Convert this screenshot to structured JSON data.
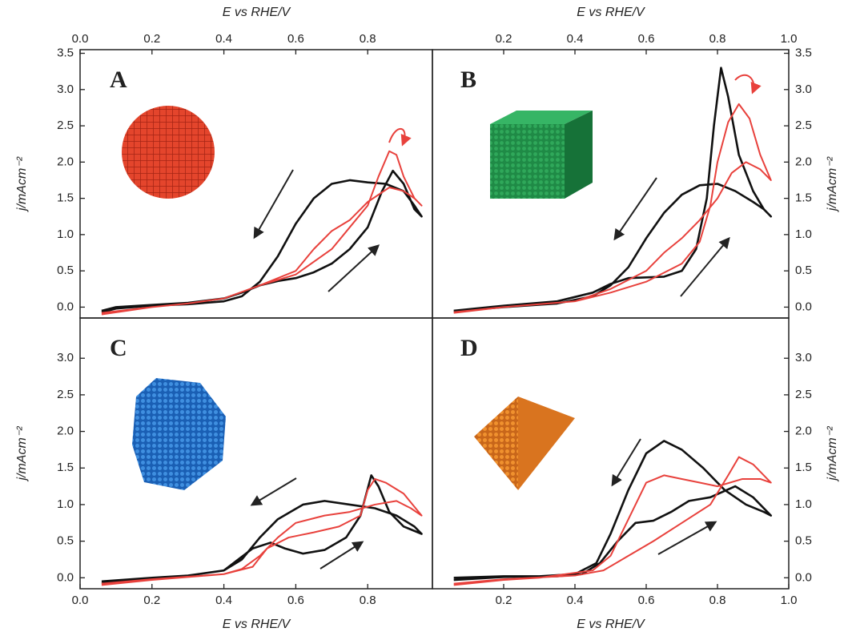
{
  "chart_data": [
    {
      "type": "line",
      "title": "A",
      "xlabel": "E vs RHE/V",
      "ylabel": "j/mAcm⁻²",
      "xlim": [
        0,
        0.98
      ],
      "xticks": [
        {
          "value": 0,
          "label": "0.0"
        },
        0.2,
        0.4,
        0.6,
        0.8
      ],
      "ylim": [
        -0.15,
        3.55
      ],
      "yticks": [
        {
          "value": 0,
          "label": "0.0"
        },
        0.5,
        {
          "value": 1,
          "label": "1.0"
        },
        1.5,
        {
          "value": 2,
          "label": "2.0"
        },
        2.5,
        {
          "value": 3,
          "label": "3.0"
        },
        3.5
      ],
      "series": [
        {
          "color": "#111111",
          "x": [
            0.06,
            0.1,
            0.2,
            0.3,
            0.4,
            0.45,
            0.5,
            0.55,
            0.6,
            0.65,
            0.7,
            0.75,
            0.8,
            0.84,
            0.87,
            0.9,
            0.93,
            0.95,
            0.93,
            0.9,
            0.85,
            0.8,
            0.75,
            0.7,
            0.65,
            0.6,
            0.55,
            0.5,
            0.45,
            0.4,
            0.3,
            0.2,
            0.1,
            0.06
          ],
          "values": [
            -0.05,
            0.0,
            0.03,
            0.06,
            0.12,
            0.2,
            0.3,
            0.36,
            0.4,
            0.48,
            0.6,
            0.8,
            1.1,
            1.6,
            1.88,
            1.7,
            1.35,
            1.25,
            1.4,
            1.6,
            1.7,
            1.72,
            1.75,
            1.7,
            1.5,
            1.15,
            0.7,
            0.35,
            0.15,
            0.08,
            0.04,
            0.02,
            -0.02,
            -0.07
          ]
        },
        {
          "color": "#e8413c",
          "x": [
            0.06,
            0.2,
            0.3,
            0.4,
            0.5,
            0.6,
            0.7,
            0.75,
            0.8,
            0.83,
            0.86,
            0.88,
            0.9,
            0.93,
            0.95,
            0.93,
            0.9,
            0.86,
            0.8,
            0.75,
            0.7,
            0.65,
            0.6,
            0.5,
            0.4,
            0.3,
            0.2,
            0.06
          ],
          "values": [
            -0.08,
            0.0,
            0.05,
            0.12,
            0.3,
            0.45,
            0.8,
            1.1,
            1.4,
            1.8,
            2.15,
            2.1,
            1.8,
            1.5,
            1.4,
            1.5,
            1.6,
            1.65,
            1.45,
            1.2,
            1.05,
            0.8,
            0.5,
            0.3,
            0.12,
            0.05,
            0.0,
            -0.1
          ]
        }
      ]
    },
    {
      "type": "line",
      "title": "B",
      "xlabel": "E vs RHE/V",
      "ylabel": "j/mAcm⁻²",
      "xlim": [
        0,
        1.0
      ],
      "xticks": [
        0.2,
        0.4,
        0.6,
        0.8,
        {
          "value": 1,
          "label": "1.0"
        }
      ],
      "ylim": [
        -0.15,
        3.55
      ],
      "yticks": [
        {
          "value": 0,
          "label": "0.0"
        },
        0.5,
        {
          "value": 1,
          "label": "1.0"
        },
        1.5,
        {
          "value": 2,
          "label": "2.0"
        },
        2.5,
        {
          "value": 3,
          "label": "3.0"
        },
        3.5
      ],
      "series": [
        {
          "color": "#111111",
          "x": [
            0.06,
            0.2,
            0.35,
            0.45,
            0.5,
            0.55,
            0.65,
            0.7,
            0.74,
            0.77,
            0.79,
            0.81,
            0.83,
            0.86,
            0.9,
            0.93,
            0.95,
            0.93,
            0.9,
            0.85,
            0.8,
            0.75,
            0.7,
            0.65,
            0.6,
            0.55,
            0.5,
            0.45,
            0.35,
            0.2,
            0.06
          ],
          "values": [
            -0.05,
            0.02,
            0.08,
            0.2,
            0.32,
            0.4,
            0.42,
            0.5,
            0.8,
            1.5,
            2.5,
            3.3,
            2.9,
            2.1,
            1.6,
            1.35,
            1.25,
            1.35,
            1.45,
            1.6,
            1.7,
            1.68,
            1.55,
            1.3,
            0.95,
            0.55,
            0.3,
            0.15,
            0.05,
            0.0,
            -0.06
          ]
        },
        {
          "color": "#e8413c",
          "x": [
            0.06,
            0.2,
            0.4,
            0.5,
            0.6,
            0.7,
            0.75,
            0.78,
            0.8,
            0.83,
            0.86,
            0.89,
            0.92,
            0.95,
            0.92,
            0.88,
            0.84,
            0.8,
            0.75,
            0.7,
            0.65,
            0.6,
            0.5,
            0.4,
            0.2,
            0.06
          ],
          "values": [
            -0.07,
            0.0,
            0.08,
            0.2,
            0.35,
            0.6,
            0.9,
            1.4,
            2.0,
            2.55,
            2.8,
            2.6,
            2.1,
            1.75,
            1.9,
            2.0,
            1.85,
            1.5,
            1.2,
            0.95,
            0.75,
            0.5,
            0.25,
            0.08,
            0.0,
            -0.08
          ]
        }
      ]
    },
    {
      "type": "line",
      "title": "C",
      "xlabel": "E vs RHE/V",
      "ylabel": "j/mAcm⁻²",
      "xlim": [
        0,
        0.98
      ],
      "xticks": [
        {
          "value": 0,
          "label": "0.0"
        },
        0.2,
        0.4,
        0.6,
        0.8
      ],
      "ylim": [
        -0.15,
        3.55
      ],
      "yticks": [
        {
          "value": 0,
          "label": "0.0"
        },
        0.5,
        {
          "value": 1,
          "label": "1.0"
        },
        1.5,
        {
          "value": 2,
          "label": "2.0"
        },
        2.5,
        {
          "value": 3,
          "label": "3.0"
        }
      ],
      "series": [
        {
          "color": "#111111",
          "x": [
            0.06,
            0.2,
            0.3,
            0.4,
            0.44,
            0.48,
            0.53,
            0.57,
            0.62,
            0.68,
            0.74,
            0.78,
            0.81,
            0.83,
            0.86,
            0.9,
            0.95,
            0.93,
            0.88,
            0.82,
            0.75,
            0.68,
            0.62,
            0.55,
            0.5,
            0.45,
            0.4,
            0.3,
            0.2,
            0.06
          ],
          "values": [
            -0.05,
            0.0,
            0.03,
            0.1,
            0.25,
            0.4,
            0.48,
            0.4,
            0.33,
            0.38,
            0.55,
            0.85,
            1.4,
            1.25,
            0.9,
            0.7,
            0.6,
            0.7,
            0.85,
            0.95,
            1.0,
            1.05,
            1.0,
            0.8,
            0.55,
            0.25,
            0.1,
            0.03,
            0.0,
            -0.08
          ]
        },
        {
          "color": "#e8413c",
          "x": [
            0.06,
            0.2,
            0.4,
            0.48,
            0.52,
            0.58,
            0.65,
            0.72,
            0.78,
            0.8,
            0.82,
            0.85,
            0.9,
            0.95,
            0.92,
            0.88,
            0.82,
            0.75,
            0.68,
            0.6,
            0.55,
            0.5,
            0.45,
            0.4,
            0.2,
            0.06
          ],
          "values": [
            -0.08,
            -0.02,
            0.05,
            0.15,
            0.4,
            0.55,
            0.62,
            0.7,
            0.85,
            1.2,
            1.35,
            1.3,
            1.15,
            0.85,
            0.95,
            1.05,
            1.0,
            0.9,
            0.85,
            0.75,
            0.55,
            0.3,
            0.12,
            0.05,
            -0.03,
            -0.1
          ]
        }
      ]
    },
    {
      "type": "line",
      "title": "D",
      "xlabel": "E vs RHE/V",
      "ylabel": "j/mAcm⁻²",
      "xlim": [
        0,
        1.0
      ],
      "xticks": [
        0.2,
        0.4,
        0.6,
        0.8,
        {
          "value": 1,
          "label": "1.0"
        }
      ],
      "ylim": [
        -0.15,
        3.55
      ],
      "yticks": [
        {
          "value": 0,
          "label": "0.0"
        },
        0.5,
        {
          "value": 1,
          "label": "1.0"
        },
        1.5,
        {
          "value": 2,
          "label": "2.0"
        },
        2.5,
        {
          "value": 3,
          "label": "3.0"
        }
      ],
      "series": [
        {
          "color": "#111111",
          "x": [
            0.06,
            0.2,
            0.35,
            0.42,
            0.47,
            0.52,
            0.57,
            0.62,
            0.67,
            0.72,
            0.78,
            0.85,
            0.9,
            0.95,
            0.93,
            0.88,
            0.82,
            0.76,
            0.7,
            0.65,
            0.6,
            0.55,
            0.5,
            0.46,
            0.4,
            0.3,
            0.2,
            0.06
          ],
          "values": [
            0.0,
            0.02,
            0.02,
            0.05,
            0.2,
            0.5,
            0.75,
            0.78,
            0.9,
            1.05,
            1.1,
            1.25,
            1.1,
            0.85,
            0.9,
            1.0,
            1.2,
            1.5,
            1.75,
            1.87,
            1.7,
            1.2,
            0.6,
            0.2,
            0.05,
            0.02,
            0.01,
            -0.03
          ]
        },
        {
          "color": "#e8413c",
          "x": [
            0.06,
            0.2,
            0.4,
            0.48,
            0.55,
            0.62,
            0.7,
            0.78,
            0.83,
            0.86,
            0.9,
            0.95,
            0.92,
            0.87,
            0.8,
            0.75,
            0.7,
            0.65,
            0.6,
            0.57,
            0.53,
            0.5,
            0.45,
            0.3,
            0.2,
            0.06
          ],
          "values": [
            -0.08,
            -0.02,
            0.03,
            0.1,
            0.3,
            0.5,
            0.75,
            1.0,
            1.4,
            1.65,
            1.55,
            1.3,
            1.35,
            1.35,
            1.25,
            1.3,
            1.35,
            1.4,
            1.3,
            1.0,
            0.6,
            0.3,
            0.1,
            0.0,
            -0.03,
            -0.1
          ]
        }
      ]
    }
  ]
}
